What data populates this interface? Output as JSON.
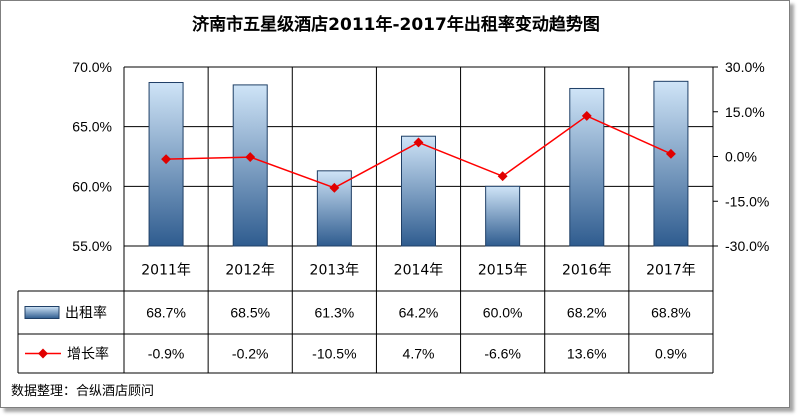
{
  "chart_data": {
    "type": "bar",
    "title": "济南市五星级酒店2011年-2017年出租率变动趋势图",
    "categories": [
      "2011年",
      "2012年",
      "2013年",
      "2014年",
      "2015年",
      "2016年",
      "2017年"
    ],
    "series": [
      {
        "name": "出租率",
        "type": "bar",
        "axis": "left",
        "values": [
          68.7,
          68.5,
          61.3,
          64.2,
          60.0,
          68.2,
          68.8
        ],
        "labels": [
          "68.7%",
          "68.5%",
          "61.3%",
          "64.2%",
          "60.0%",
          "68.2%",
          "68.8%"
        ]
      },
      {
        "name": "增长率",
        "type": "line",
        "axis": "right",
        "values": [
          -0.9,
          -0.2,
          -10.5,
          4.7,
          -6.6,
          13.6,
          0.9
        ],
        "labels": [
          "-0.9%",
          "-0.2%",
          "-10.5%",
          "4.7%",
          "-6.6%",
          "13.6%",
          "0.9%"
        ]
      }
    ],
    "y_left": {
      "ylim": [
        55,
        70
      ],
      "ticks": [
        "55.0%",
        "60.0%",
        "65.0%",
        "70.0%"
      ]
    },
    "y_right": {
      "ylim": [
        -30,
        30
      ],
      "ticks": [
        "-30.0%",
        "-15.0%",
        "0.0%",
        "15.0%",
        "30.0%"
      ]
    },
    "grid": true,
    "legend": "data-table",
    "colors": {
      "bar_top": "#cfe4f7",
      "bar_bottom": "#2f5c8f",
      "bar_stroke": "#1f3f66",
      "line": "#ff0000",
      "marker": "#e00000"
    }
  },
  "source": "数据整理：合纵酒店顾问"
}
